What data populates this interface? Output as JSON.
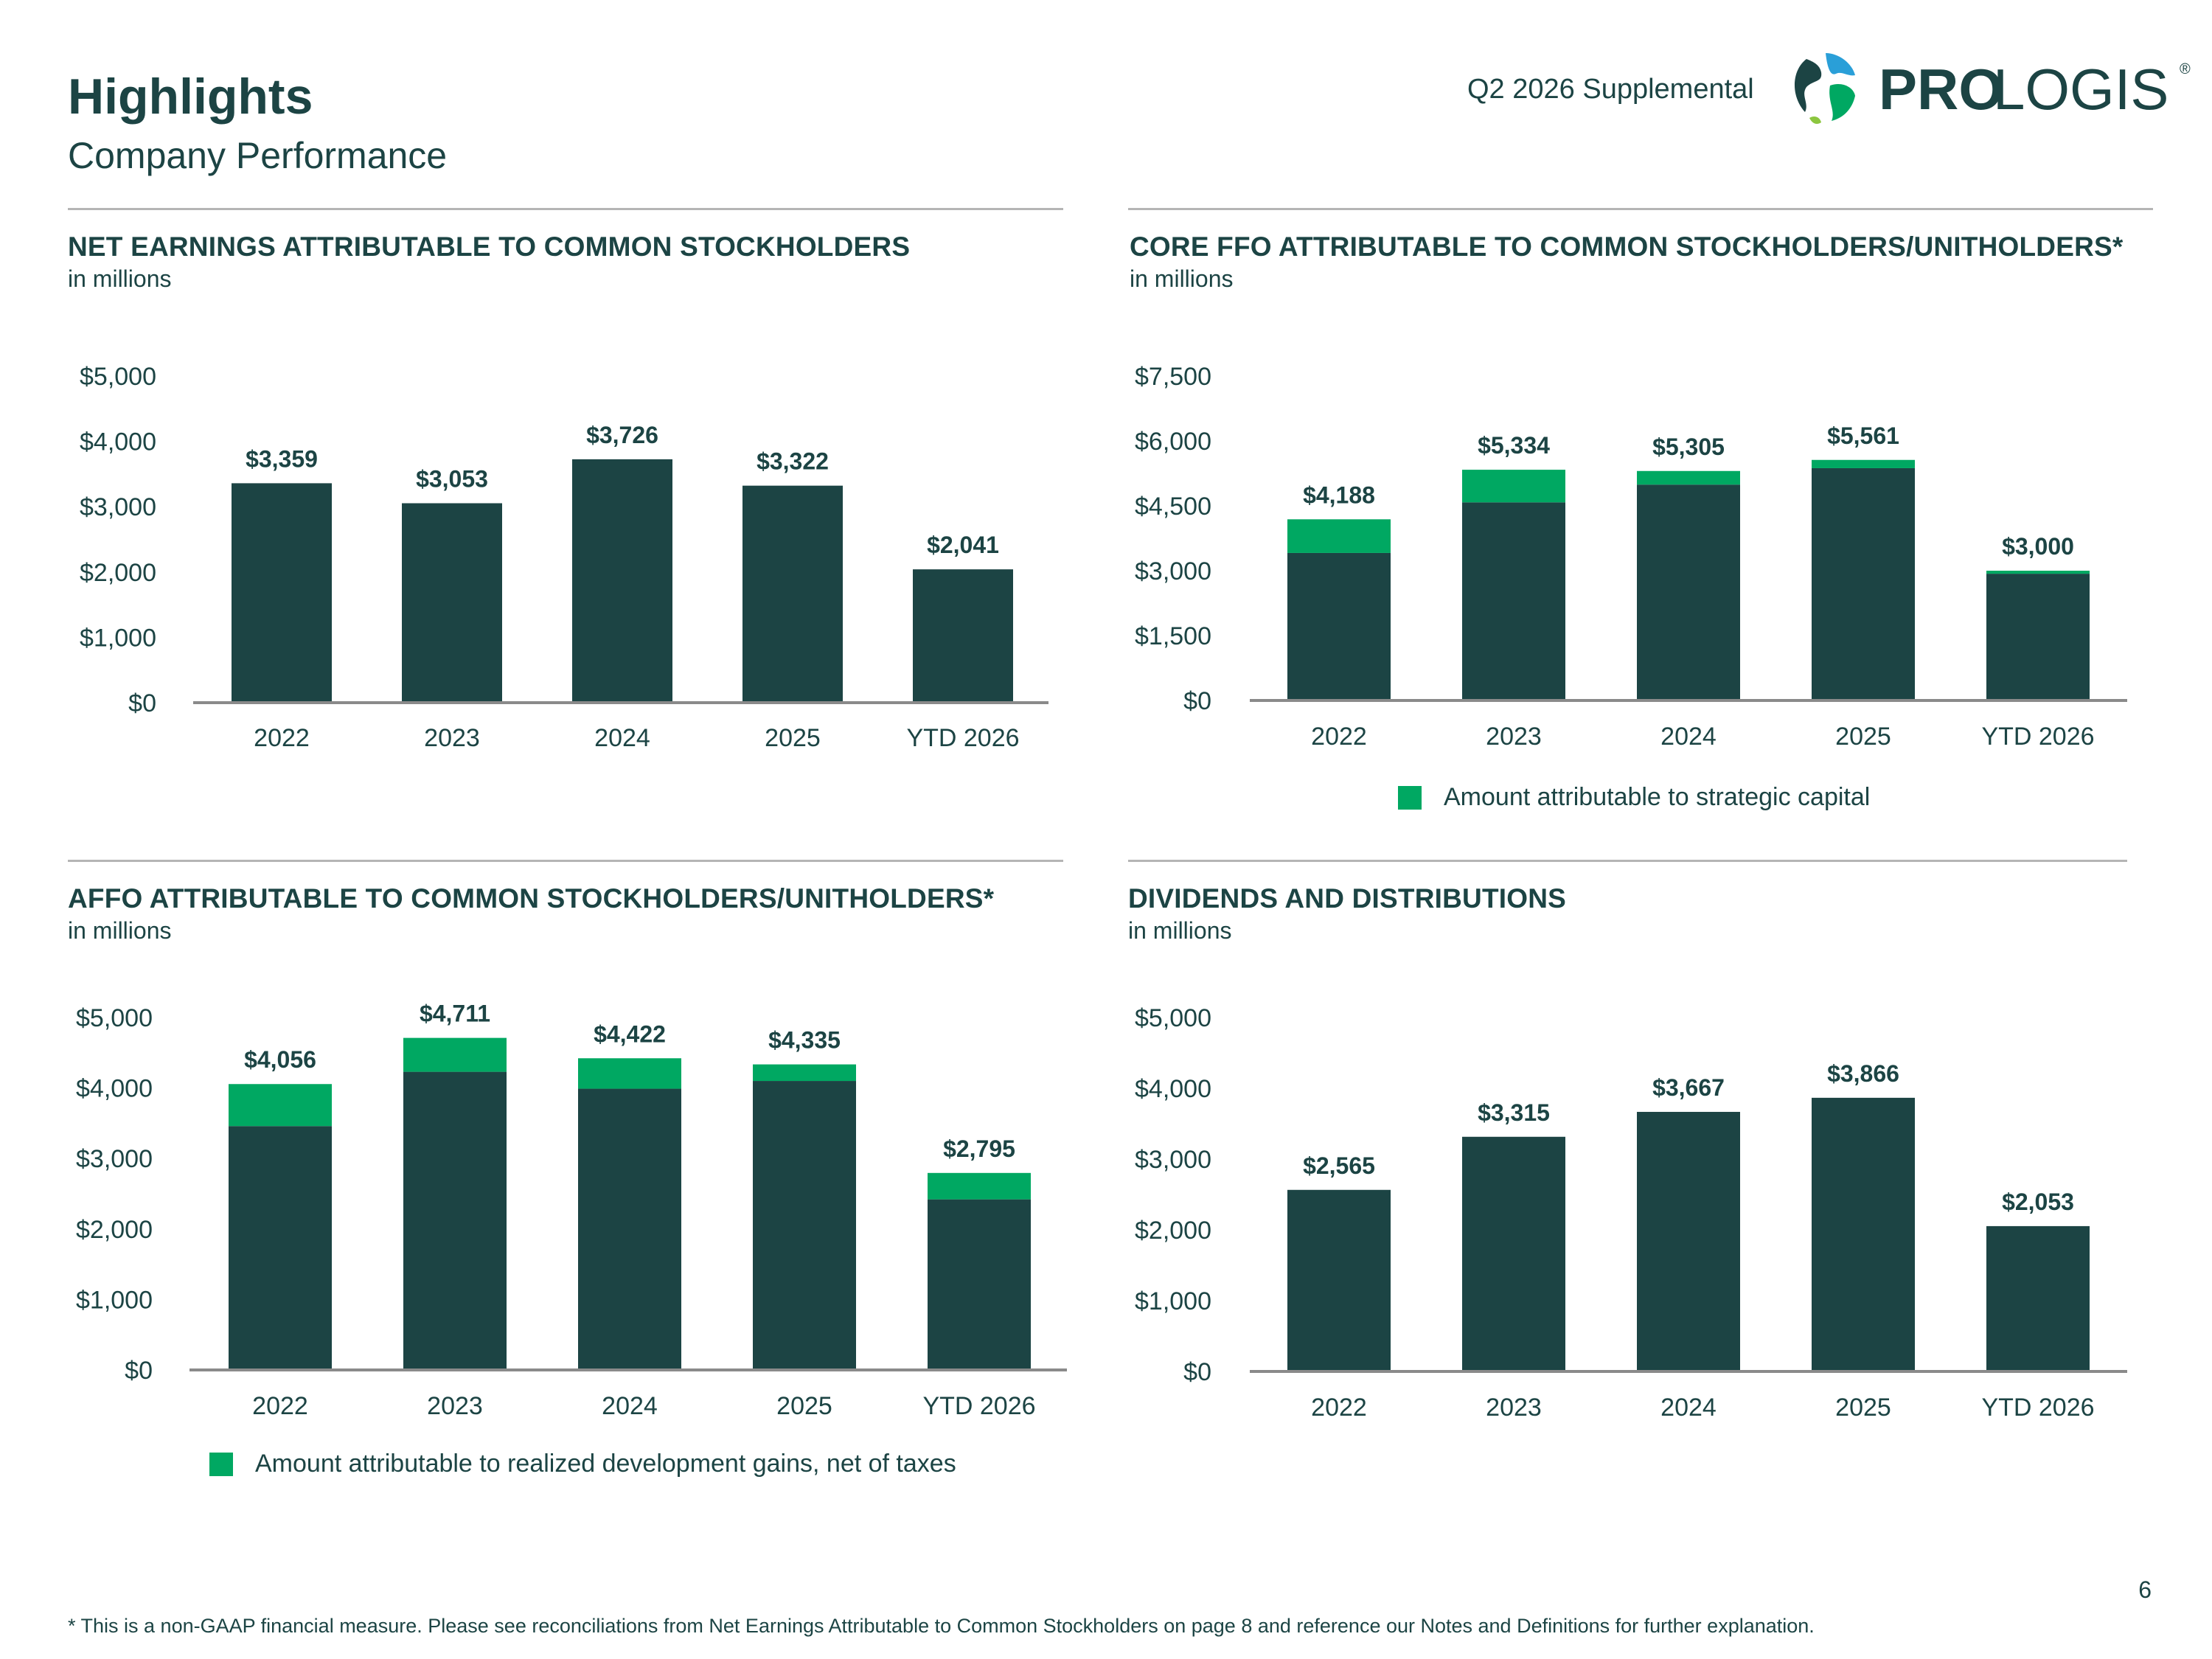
{
  "header": {
    "title": "Highlights",
    "subtitle": "Company Performance",
    "report_label": "Q2 2026 Supplemental",
    "logo_text_bold": "PRO",
    "logo_text_light": "LOGIS",
    "logo_mark": "®"
  },
  "colors": {
    "primary": "#1c4444",
    "accent": "#00a862",
    "divider": "#b5b5b5"
  },
  "charts": {
    "net_earnings": {
      "title": "NET EARNINGS ATTRIBUTABLE TO COMMON STOCKHOLDERS",
      "subtitle": "in millions"
    },
    "core_ffo": {
      "title": "CORE FFO ATTRIBUTABLE TO COMMON STOCKHOLDERS/UNITHOLDERS*",
      "subtitle": "in millions",
      "legend": "Amount attributable to strategic capital"
    },
    "affo": {
      "title": "AFFO ATTRIBUTABLE TO COMMON STOCKHOLDERS/UNITHOLDERS*",
      "subtitle": "in millions",
      "legend": "Amount attributable to realized development gains, net of taxes"
    },
    "dividends": {
      "title": "DIVIDENDS AND DISTRIBUTIONS",
      "subtitle": "in millions"
    }
  },
  "chart_data": [
    {
      "id": "net_earnings",
      "type": "bar",
      "categories": [
        "2022",
        "2023",
        "2024",
        "2025",
        "YTD 2026"
      ],
      "values": [
        3359,
        3053,
        3726,
        3322,
        2041
      ],
      "data_labels": [
        "$3,359",
        "$3,053",
        "$3,726",
        "$3,322",
        "$2,041"
      ],
      "yticks": [
        "$0",
        "$1,000",
        "$2,000",
        "$3,000",
        "$4,000",
        "$5,000"
      ],
      "ylim": [
        0,
        5000
      ]
    },
    {
      "id": "core_ffo",
      "type": "bar",
      "stacked": true,
      "categories": [
        "2022",
        "2023",
        "2024",
        "2025",
        "YTD 2026"
      ],
      "totals": [
        4188,
        5334,
        5305,
        5561,
        3000
      ],
      "data_labels": [
        "$4,188",
        "$5,334",
        "$5,305",
        "$5,561",
        "$3,000"
      ],
      "series": [
        {
          "values": [
            3410,
            4580,
            4990,
            5370,
            2930
          ],
          "color": "#1c4444"
        },
        {
          "name": "Amount attributable to strategic capital",
          "values": [
            778,
            754,
            315,
            191,
            70
          ],
          "color": "#00a862"
        }
      ],
      "yticks": [
        "$0",
        "$1,500",
        "$3,000",
        "$4,500",
        "$6,000",
        "$7,500"
      ],
      "ylim": [
        0,
        7500
      ]
    },
    {
      "id": "affo",
      "type": "bar",
      "stacked": true,
      "categories": [
        "2022",
        "2023",
        "2024",
        "2025",
        "YTD 2026"
      ],
      "totals": [
        4056,
        4711,
        4422,
        4335,
        2795
      ],
      "data_labels": [
        "$4,056",
        "$4,711",
        "$4,422",
        "$4,335",
        "$2,795"
      ],
      "series": [
        {
          "values": [
            3460,
            4230,
            3990,
            4100,
            2420
          ],
          "color": "#1c4444"
        },
        {
          "name": "Amount attributable to realized development gains, net of taxes",
          "values": [
            596,
            481,
            432,
            235,
            375
          ],
          "color": "#00a862"
        }
      ],
      "yticks": [
        "$0",
        "$1,000",
        "$2,000",
        "$3,000",
        "$4,000",
        "$5,000"
      ],
      "ylim": [
        0,
        5000
      ]
    },
    {
      "id": "dividends",
      "type": "bar",
      "categories": [
        "2022",
        "2023",
        "2024",
        "2025",
        "YTD 2026"
      ],
      "values": [
        2565,
        3315,
        3667,
        3866,
        2053
      ],
      "data_labels": [
        "$2,565",
        "$3,315",
        "$3,667",
        "$3,866",
        "$2,053"
      ],
      "yticks": [
        "$0",
        "$1,000",
        "$2,000",
        "$3,000",
        "$4,000",
        "$5,000"
      ],
      "ylim": [
        0,
        5000
      ]
    }
  ],
  "footer": {
    "page_number": "6",
    "footnote": "* This is a non-GAAP financial measure. Please see reconciliations from Net Earnings Attributable to Common Stockholders on page 8 and reference our Notes and Definitions for further explanation."
  }
}
